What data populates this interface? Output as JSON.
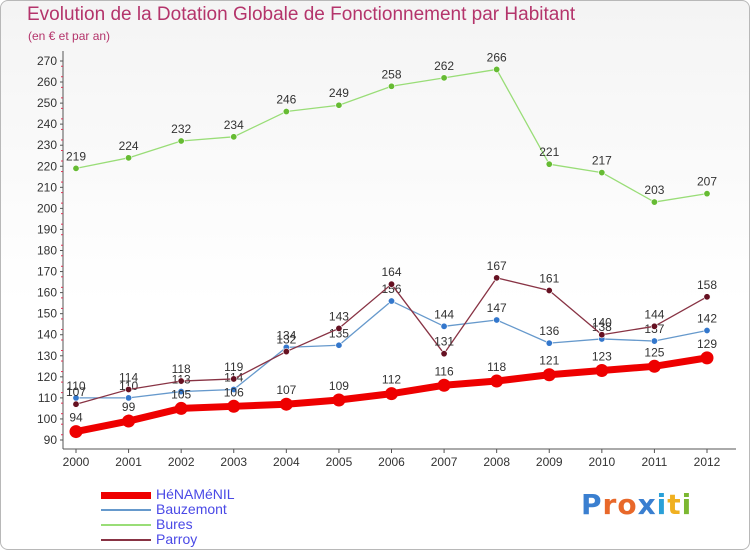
{
  "header": {
    "title": "Evolution de la Dotation Globale de Fonctionnement par Habitant",
    "subtitle": "(en € et par an)"
  },
  "brand": {
    "text": "Proxiti",
    "letter_colors": [
      "#3a7fd0",
      "#e8682a",
      "#e8682a",
      "#3a7fd0",
      "#2aa0d8",
      "#f0b020",
      "#7cb832"
    ]
  },
  "chart_data": {
    "type": "line",
    "x": [
      2000,
      2001,
      2002,
      2003,
      2004,
      2005,
      2006,
      2007,
      2008,
      2009,
      2010,
      2011,
      2012
    ],
    "ylim": [
      90,
      270
    ],
    "yticks": [
      90,
      100,
      110,
      120,
      130,
      140,
      150,
      160,
      170,
      180,
      190,
      200,
      210,
      220,
      230,
      240,
      250,
      260,
      270
    ],
    "grid": false,
    "legend_position": "bottom-left",
    "series": [
      {
        "name": "Bures",
        "color": "#99dd77",
        "marker_color": "#66bb33",
        "values": [
          219,
          224,
          232,
          234,
          246,
          249,
          258,
          262,
          266,
          221,
          217,
          203,
          207
        ]
      },
      {
        "name": "Bauzemont",
        "color": "#6699cc",
        "marker_color": "#3377cc",
        "values": [
          110,
          110,
          113,
          114,
          134,
          135,
          156,
          144,
          147,
          136,
          138,
          137,
          142
        ]
      },
      {
        "name": "Parroy",
        "color": "#883344",
        "marker_color": "#661122",
        "values": [
          107,
          114,
          118,
          119,
          132,
          143,
          164,
          131,
          167,
          161,
          140,
          144,
          158
        ]
      },
      {
        "name": "HéNAMéNIL",
        "color": "#ee0000",
        "marker_color": "#ee0000",
        "highlight": true,
        "values": [
          94,
          99,
          105,
          106,
          107,
          109,
          112,
          116,
          118,
          121,
          123,
          125,
          129
        ]
      }
    ],
    "legend_order": [
      "HéNAMéNIL",
      "Bauzemont",
      "Bures",
      "Parroy"
    ]
  }
}
